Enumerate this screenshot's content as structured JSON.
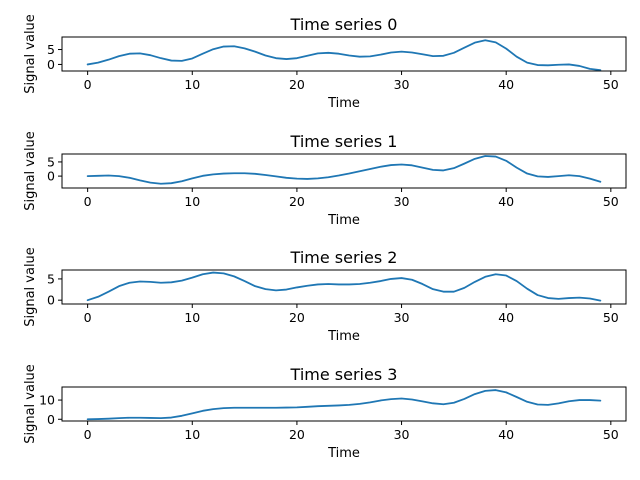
{
  "chart_data": [
    {
      "type": "line",
      "title": "Time series 0",
      "xlabel": "Time",
      "ylabel": "Signal value",
      "xlim": [
        -2.45,
        51.45
      ],
      "ylim": [
        -2.2,
        9.2
      ],
      "xticks": [
        0,
        10,
        20,
        30,
        40,
        50
      ],
      "yticks": [
        0,
        5
      ],
      "grid": false,
      "color": "#1f77b4",
      "x": [
        0,
        1,
        2,
        3,
        4,
        5,
        6,
        7,
        8,
        9,
        10,
        11,
        12,
        13,
        14,
        15,
        16,
        17,
        18,
        19,
        20,
        21,
        22,
        23,
        24,
        25,
        26,
        27,
        28,
        29,
        30,
        31,
        32,
        33,
        34,
        35,
        36,
        37,
        38,
        39,
        40,
        41,
        42,
        43,
        44,
        45,
        46,
        47,
        48,
        49
      ],
      "y": [
        0.0,
        0.6,
        1.6,
        2.8,
        3.6,
        3.7,
        3.1,
        2.1,
        1.3,
        1.2,
        2.0,
        3.6,
        5.1,
        6.0,
        6.1,
        5.4,
        4.3,
        3.0,
        2.1,
        1.8,
        2.1,
        2.9,
        3.7,
        3.9,
        3.6,
        3.0,
        2.6,
        2.7,
        3.3,
        4.0,
        4.3,
        4.0,
        3.4,
        2.8,
        2.9,
        3.9,
        5.6,
        7.3,
        8.1,
        7.4,
        5.3,
        2.6,
        0.6,
        -0.2,
        -0.3,
        -0.1,
        0.0,
        -0.5,
        -1.5,
        -1.9
      ]
    },
    {
      "type": "line",
      "title": "Time series 1",
      "xlabel": "Time",
      "ylabel": "Signal value",
      "xlim": [
        -2.45,
        51.45
      ],
      "ylim": [
        -4.2,
        7.8
      ],
      "xticks": [
        0,
        10,
        20,
        30,
        40,
        50
      ],
      "yticks": [
        0,
        5
      ],
      "grid": false,
      "color": "#1f77b4",
      "x": [
        0,
        1,
        2,
        3,
        4,
        5,
        6,
        7,
        8,
        9,
        10,
        11,
        12,
        13,
        14,
        15,
        16,
        17,
        18,
        19,
        20,
        21,
        22,
        23,
        24,
        25,
        26,
        27,
        28,
        29,
        30,
        31,
        32,
        33,
        34,
        35,
        36,
        37,
        38,
        39,
        40,
        41,
        42,
        43,
        44,
        45,
        46,
        47,
        48,
        49
      ],
      "y": [
        0.0,
        0.1,
        0.2,
        0.0,
        -0.6,
        -1.5,
        -2.3,
        -2.7,
        -2.5,
        -1.8,
        -0.8,
        0.1,
        0.6,
        0.9,
        1.0,
        1.0,
        0.8,
        0.4,
        -0.1,
        -0.6,
        -0.9,
        -1.0,
        -0.8,
        -0.4,
        0.2,
        0.9,
        1.7,
        2.5,
        3.3,
        3.9,
        4.1,
        3.8,
        3.0,
        2.2,
        2.0,
        2.8,
        4.4,
        6.1,
        7.1,
        6.9,
        5.4,
        3.0,
        0.9,
        -0.1,
        -0.3,
        0.0,
        0.3,
        0.0,
        -0.9,
        -2.0
      ]
    },
    {
      "type": "line",
      "title": "Time series 2",
      "xlabel": "Time",
      "ylabel": "Signal value",
      "xlim": [
        -2.45,
        51.45
      ],
      "ylim": [
        -0.9,
        7.1
      ],
      "xticks": [
        0,
        10,
        20,
        30,
        40,
        50
      ],
      "yticks": [
        0,
        5
      ],
      "grid": false,
      "color": "#1f77b4",
      "x": [
        0,
        1,
        2,
        3,
        4,
        5,
        6,
        7,
        8,
        9,
        10,
        11,
        12,
        13,
        14,
        15,
        16,
        17,
        18,
        19,
        20,
        21,
        22,
        23,
        24,
        25,
        26,
        27,
        28,
        29,
        30,
        31,
        32,
        33,
        34,
        35,
        36,
        37,
        38,
        39,
        40,
        41,
        42,
        43,
        44,
        45,
        46,
        47,
        48,
        49
      ],
      "y": [
        0.0,
        0.8,
        2.0,
        3.3,
        4.1,
        4.4,
        4.3,
        4.1,
        4.2,
        4.6,
        5.3,
        6.1,
        6.5,
        6.3,
        5.6,
        4.5,
        3.3,
        2.6,
        2.3,
        2.5,
        3.0,
        3.4,
        3.7,
        3.8,
        3.7,
        3.7,
        3.8,
        4.1,
        4.5,
        5.0,
        5.2,
        4.8,
        3.8,
        2.6,
        2.0,
        2.0,
        2.9,
        4.3,
        5.5,
        6.1,
        5.8,
        4.5,
        2.7,
        1.2,
        0.5,
        0.3,
        0.5,
        0.6,
        0.4,
        -0.1
      ]
    },
    {
      "type": "line",
      "title": "Time series 3",
      "xlabel": "Time",
      "ylabel": "Signal value",
      "xlim": [
        -2.45,
        51.45
      ],
      "ylim": [
        -0.9,
        16.8
      ],
      "xticks": [
        0,
        10,
        20,
        30,
        40,
        50
      ],
      "yticks": [
        0,
        10
      ],
      "grid": false,
      "color": "#1f77b4",
      "x": [
        0,
        1,
        2,
        3,
        4,
        5,
        6,
        7,
        8,
        9,
        10,
        11,
        12,
        13,
        14,
        15,
        16,
        17,
        18,
        19,
        20,
        21,
        22,
        23,
        24,
        25,
        26,
        27,
        28,
        29,
        30,
        31,
        32,
        33,
        34,
        35,
        36,
        37,
        38,
        39,
        40,
        41,
        42,
        43,
        44,
        45,
        46,
        47,
        48,
        49
      ],
      "y": [
        0.0,
        0.1,
        0.3,
        0.6,
        0.8,
        0.8,
        0.7,
        0.6,
        0.9,
        1.8,
        3.1,
        4.4,
        5.3,
        5.8,
        6.0,
        6.0,
        6.0,
        6.0,
        6.0,
        6.1,
        6.2,
        6.5,
        6.8,
        7.0,
        7.2,
        7.5,
        8.0,
        8.8,
        9.8,
        10.5,
        10.8,
        10.3,
        9.3,
        8.3,
        7.8,
        8.6,
        10.6,
        13.1,
        14.8,
        15.2,
        14.0,
        11.6,
        9.1,
        7.7,
        7.5,
        8.3,
        9.4,
        10.0,
        10.0,
        9.7
      ]
    }
  ]
}
